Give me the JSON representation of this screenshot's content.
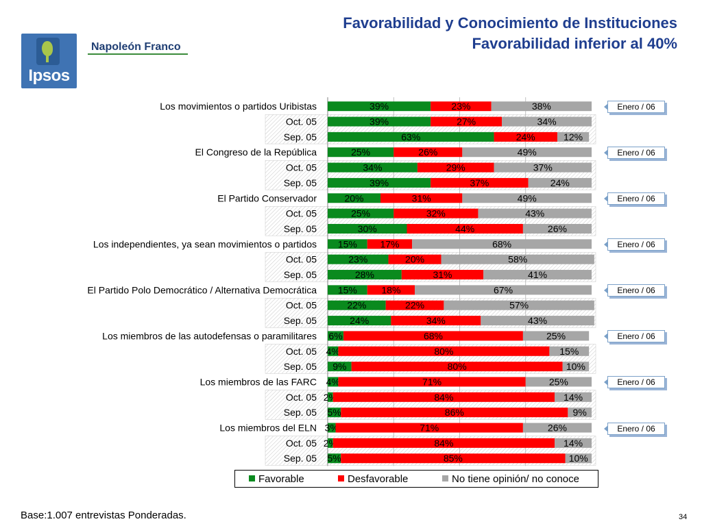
{
  "header": {
    "title_line1": "Favorabilidad y Conocimiento de Instituciones",
    "title_line2": "Favorabilidad inferior al 40%",
    "logo_text": "Ipsos",
    "brand_text": "Napoleón Franco"
  },
  "footer": {
    "base_note": "Base:1.007 entrevistas Ponderadas.",
    "page_number": "34"
  },
  "badges": [
    "Enero / 06",
    "Enero / 06",
    "Enero / 06",
    "Enero / 06",
    "Enero / 06",
    "Enero / 06",
    "Enero / 06",
    "Enero / 06"
  ],
  "colors": {
    "favorable": "#0a8a1e",
    "desfavorable": "#ff0000",
    "no_opinion": "#a6a6a6"
  },
  "chart_data": {
    "type": "bar",
    "orientation": "horizontal-stacked-100",
    "title": "Favorabilidad y Conocimiento de Instituciones - Favorabilidad inferior al 40%",
    "legend": [
      "Favorable",
      "Desfavorable",
      "No tiene opinión/ no conoce"
    ],
    "legend_position": "bottom",
    "xlim": [
      0,
      100
    ],
    "grid": true,
    "groups": [
      {
        "name": "Los movimientos o partidos Uribistas",
        "rows": [
          {
            "label": "Los movimientos o partidos Uribistas",
            "values": [
              39,
              23,
              38
            ]
          },
          {
            "label": "Oct. 05",
            "values": [
              39,
              27,
              34
            ]
          },
          {
            "label": "Sep. 05",
            "values": [
              63,
              24,
              12
            ]
          }
        ]
      },
      {
        "name": "El Congreso de la República",
        "rows": [
          {
            "label": "El Congreso de la República",
            "values": [
              25,
              26,
              49
            ]
          },
          {
            "label": "Oct. 05",
            "values": [
              34,
              29,
              37
            ]
          },
          {
            "label": "Sep. 05",
            "values": [
              39,
              37,
              24
            ]
          }
        ]
      },
      {
        "name": "El Partido Conservador",
        "rows": [
          {
            "label": "El Partido Conservador",
            "values": [
              20,
              31,
              49
            ]
          },
          {
            "label": "Oct. 05",
            "values": [
              25,
              32,
              43
            ]
          },
          {
            "label": "Sep. 05",
            "values": [
              30,
              44,
              26
            ]
          }
        ]
      },
      {
        "name": "Los independientes, ya sean movimientos o partidos",
        "rows": [
          {
            "label": "Los independientes, ya sean movimientos o partidos",
            "values": [
              15,
              17,
              68
            ]
          },
          {
            "label": "Oct. 05",
            "values": [
              23,
              20,
              58
            ]
          },
          {
            "label": "Sep. 05",
            "values": [
              28,
              31,
              41
            ]
          }
        ]
      },
      {
        "name": "El Partido Polo Democrático / Alternativa Democrática",
        "rows": [
          {
            "label": "El Partido Polo Democrático / Alternativa Democrática",
            "values": [
              15,
              18,
              67
            ]
          },
          {
            "label": "Oct. 05",
            "values": [
              22,
              22,
              57
            ]
          },
          {
            "label": "Sep. 05",
            "values": [
              24,
              34,
              43
            ]
          }
        ]
      },
      {
        "name": "Los miembros de las autodefensas o paramilitares",
        "rows": [
          {
            "label": "Los miembros de las autodefensas o paramilitares",
            "values": [
              6,
              68,
              25
            ]
          },
          {
            "label": "Oct. 05",
            "values": [
              4,
              80,
              15
            ]
          },
          {
            "label": "Sep. 05",
            "values": [
              9,
              80,
              10
            ]
          }
        ]
      },
      {
        "name": "Los miembros de las FARC",
        "rows": [
          {
            "label": "Los miembros de las FARC",
            "values": [
              4,
              71,
              25
            ]
          },
          {
            "label": "Oct. 05",
            "values": [
              2,
              84,
              14
            ]
          },
          {
            "label": "Sep. 05",
            "values": [
              5,
              86,
              9
            ]
          }
        ]
      },
      {
        "name": "Los miembros del ELN",
        "rows": [
          {
            "label": "Los miembros del ELN",
            "values": [
              3,
              71,
              26
            ]
          },
          {
            "label": "Oct. 05",
            "values": [
              2,
              84,
              14
            ]
          },
          {
            "label": "Sep. 05",
            "values": [
              5,
              85,
              10
            ]
          }
        ]
      }
    ]
  }
}
